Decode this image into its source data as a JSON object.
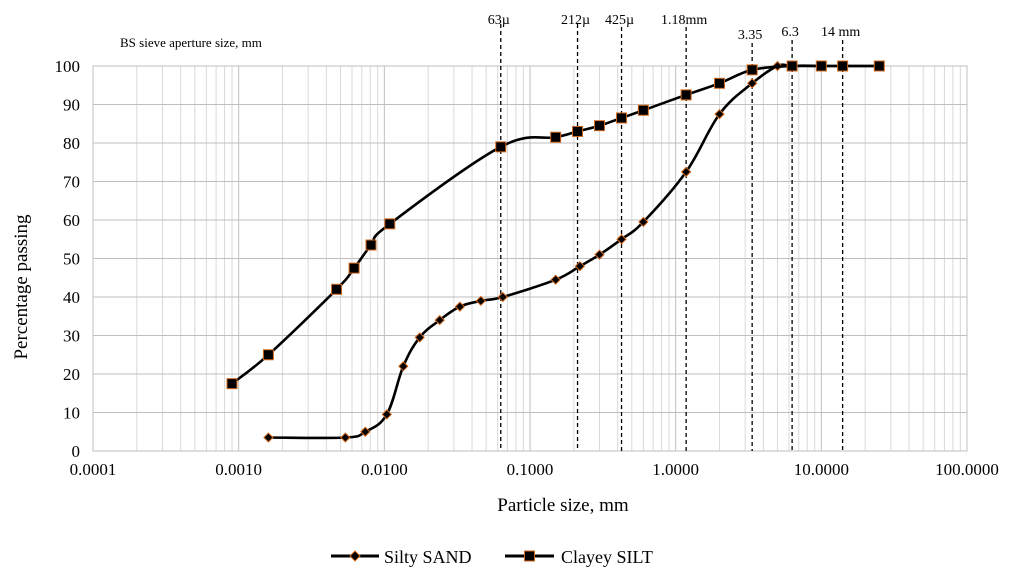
{
  "chart_data": {
    "type": "line",
    "title": "",
    "xlabel": "Particle size, mm",
    "ylabel": "Percentage passing",
    "x_scale": "log",
    "xlim": [
      0.0001,
      100
    ],
    "ylim": [
      0,
      100
    ],
    "grid": true,
    "legend_position": "bottom",
    "x_tick_labels": [
      "0.0001",
      "0.0010",
      "0.0100",
      "0.1000",
      "1.0000",
      "10.0000",
      "100.0000"
    ],
    "y_tick_labels": [
      "0",
      "10",
      "20",
      "30",
      "40",
      "50",
      "60",
      "70",
      "80",
      "90",
      "100"
    ],
    "annotation_label": "BS sieve aperture size, mm",
    "sieve_lines": [
      {
        "x": 0.063,
        "label": "63µ"
      },
      {
        "x": 0.212,
        "label": "212µ"
      },
      {
        "x": 0.425,
        "label": "425µ"
      },
      {
        "x": 1.18,
        "label": "1.18mm"
      },
      {
        "x": 3.35,
        "label": "3.35"
      },
      {
        "x": 6.3,
        "label": "6.3"
      },
      {
        "x": 14,
        "label": "14 mm"
      }
    ],
    "series": [
      {
        "name": "Silty SAND",
        "marker": "diamond",
        "points": [
          [
            0.0016,
            3.5
          ],
          [
            0.0054,
            3.5
          ],
          [
            0.0074,
            5
          ],
          [
            0.0104,
            9.5
          ],
          [
            0.0135,
            22
          ],
          [
            0.0175,
            29.5
          ],
          [
            0.024,
            34
          ],
          [
            0.033,
            37.5
          ],
          [
            0.046,
            39
          ],
          [
            0.065,
            40
          ],
          [
            0.15,
            44.5
          ],
          [
            0.22,
            48
          ],
          [
            0.3,
            51
          ],
          [
            0.425,
            55
          ],
          [
            0.6,
            59.5
          ],
          [
            1.18,
            72.5
          ],
          [
            2,
            87.5
          ],
          [
            3.35,
            95.5
          ],
          [
            5,
            100
          ],
          [
            6.3,
            100
          ],
          [
            10,
            100
          ],
          [
            14,
            100
          ],
          [
            25,
            100
          ]
        ]
      },
      {
        "name": "Clayey SILT",
        "marker": "square",
        "points": [
          [
            0.0009,
            17.5
          ],
          [
            0.0016,
            25
          ],
          [
            0.0047,
            42
          ],
          [
            0.0062,
            47.5
          ],
          [
            0.0081,
            53.5
          ],
          [
            0.0109,
            59
          ],
          [
            0.063,
            79
          ],
          [
            0.15,
            81.5
          ],
          [
            0.212,
            83
          ],
          [
            0.3,
            84.5
          ],
          [
            0.425,
            86.5
          ],
          [
            0.6,
            88.5
          ],
          [
            1.18,
            92.5
          ],
          [
            2,
            95.5
          ],
          [
            3.35,
            99
          ],
          [
            6.3,
            100
          ],
          [
            10,
            100
          ],
          [
            14,
            100
          ],
          [
            25,
            100
          ]
        ]
      }
    ]
  },
  "colors": {
    "line": "#000000",
    "marker_fill": "#000000",
    "marker_edge": "#d2691e",
    "major_grid": "#bfbfbf",
    "minor_grid": "#d9d9d9"
  }
}
